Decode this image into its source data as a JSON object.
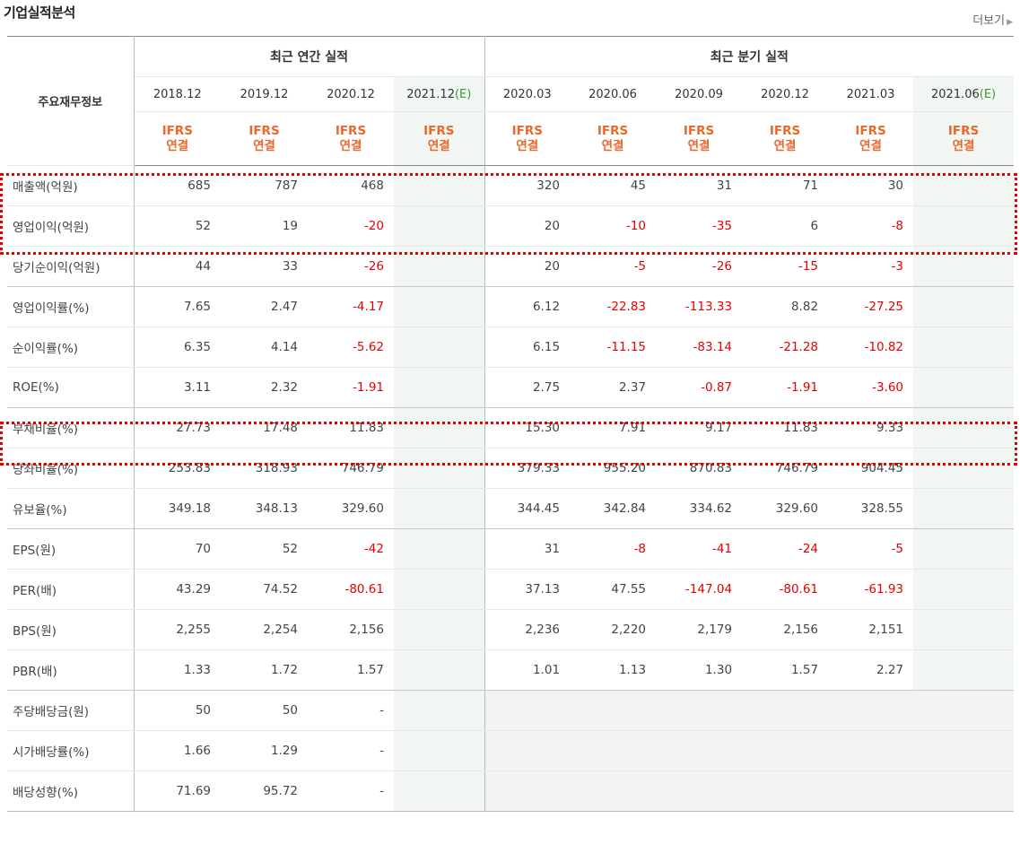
{
  "title": "기업실적분석",
  "more_label": "더보기",
  "header": {
    "row_label": "주요재무정보",
    "annual_label": "최근 연간 실적",
    "quarter_label": "최근 분기 실적",
    "ifrs_line1": "IFRS",
    "ifrs_line2": "연결",
    "annual_periods": [
      {
        "date": "2018.12",
        "est": ""
      },
      {
        "date": "2019.12",
        "est": ""
      },
      {
        "date": "2020.12",
        "est": ""
      },
      {
        "date": "2021.12",
        "est": "(E)"
      }
    ],
    "quarter_periods": [
      {
        "date": "2020.03",
        "est": ""
      },
      {
        "date": "2020.06",
        "est": ""
      },
      {
        "date": "2020.09",
        "est": ""
      },
      {
        "date": "2020.12",
        "est": ""
      },
      {
        "date": "2021.03",
        "est": ""
      },
      {
        "date": "2021.06",
        "est": "(E)"
      }
    ]
  },
  "rows": [
    {
      "label": "매출액(억원)",
      "annual": [
        "685",
        "787",
        "468",
        ""
      ],
      "quarter": [
        "320",
        "45",
        "31",
        "71",
        "30",
        ""
      ]
    },
    {
      "label": "영업이익(억원)",
      "annual": [
        "52",
        "19",
        "-20",
        ""
      ],
      "quarter": [
        "20",
        "-10",
        "-35",
        "6",
        "-8",
        ""
      ]
    },
    {
      "label": "당기순이익(억원)",
      "annual": [
        "44",
        "33",
        "-26",
        ""
      ],
      "quarter": [
        "20",
        "-5",
        "-26",
        "-15",
        "-3",
        ""
      ]
    },
    {
      "label": "영업이익률(%)",
      "annual": [
        "7.65",
        "2.47",
        "-4.17",
        ""
      ],
      "quarter": [
        "6.12",
        "-22.83",
        "-113.33",
        "8.82",
        "-27.25",
        ""
      ]
    },
    {
      "label": "순이익률(%)",
      "annual": [
        "6.35",
        "4.14",
        "-5.62",
        ""
      ],
      "quarter": [
        "6.15",
        "-11.15",
        "-83.14",
        "-21.28",
        "-10.82",
        ""
      ]
    },
    {
      "label": "ROE(%)",
      "annual": [
        "3.11",
        "2.32",
        "-1.91",
        ""
      ],
      "quarter": [
        "2.75",
        "2.37",
        "-0.87",
        "-1.91",
        "-3.60",
        ""
      ]
    },
    {
      "label": "부채비율(%)",
      "annual": [
        "27.73",
        "17.48",
        "11.83",
        ""
      ],
      "quarter": [
        "15.30",
        "7.91",
        "9.17",
        "11.83",
        "9.33",
        ""
      ]
    },
    {
      "label": "당좌비율(%)",
      "annual": [
        "253.83",
        "318.93",
        "746.79",
        ""
      ],
      "quarter": [
        "379.33",
        "955.20",
        "870.83",
        "746.79",
        "904.45",
        ""
      ]
    },
    {
      "label": "유보율(%)",
      "annual": [
        "349.18",
        "348.13",
        "329.60",
        ""
      ],
      "quarter": [
        "344.45",
        "342.84",
        "334.62",
        "329.60",
        "328.55",
        ""
      ]
    },
    {
      "label": "EPS(원)",
      "annual": [
        "70",
        "52",
        "-42",
        ""
      ],
      "quarter": [
        "31",
        "-8",
        "-41",
        "-24",
        "-5",
        ""
      ]
    },
    {
      "label": "PER(배)",
      "annual": [
        "43.29",
        "74.52",
        "-80.61",
        ""
      ],
      "quarter": [
        "37.13",
        "47.55",
        "-147.04",
        "-80.61",
        "-61.93",
        ""
      ]
    },
    {
      "label": "BPS(원)",
      "annual": [
        "2,255",
        "2,254",
        "2,156",
        ""
      ],
      "quarter": [
        "2,236",
        "2,220",
        "2,179",
        "2,156",
        "2,151",
        ""
      ]
    },
    {
      "label": "PBR(배)",
      "annual": [
        "1.33",
        "1.72",
        "1.57",
        ""
      ],
      "quarter": [
        "1.01",
        "1.13",
        "1.30",
        "1.57",
        "2.27",
        ""
      ]
    },
    {
      "label": "주당배당금(원)",
      "annual": [
        "50",
        "50",
        "-",
        ""
      ],
      "quarter": null
    },
    {
      "label": "시가배당률(%)",
      "annual": [
        "1.66",
        "1.29",
        "-",
        ""
      ],
      "quarter": null
    },
    {
      "label": "배당성향(%)",
      "annual": [
        "71.69",
        "95.72",
        "-",
        ""
      ],
      "quarter": null
    }
  ],
  "colors": {
    "negative": "#e60000",
    "ifrs": "#e8692e",
    "estimate": "#3a9a3a",
    "highlight": "#e00000"
  }
}
